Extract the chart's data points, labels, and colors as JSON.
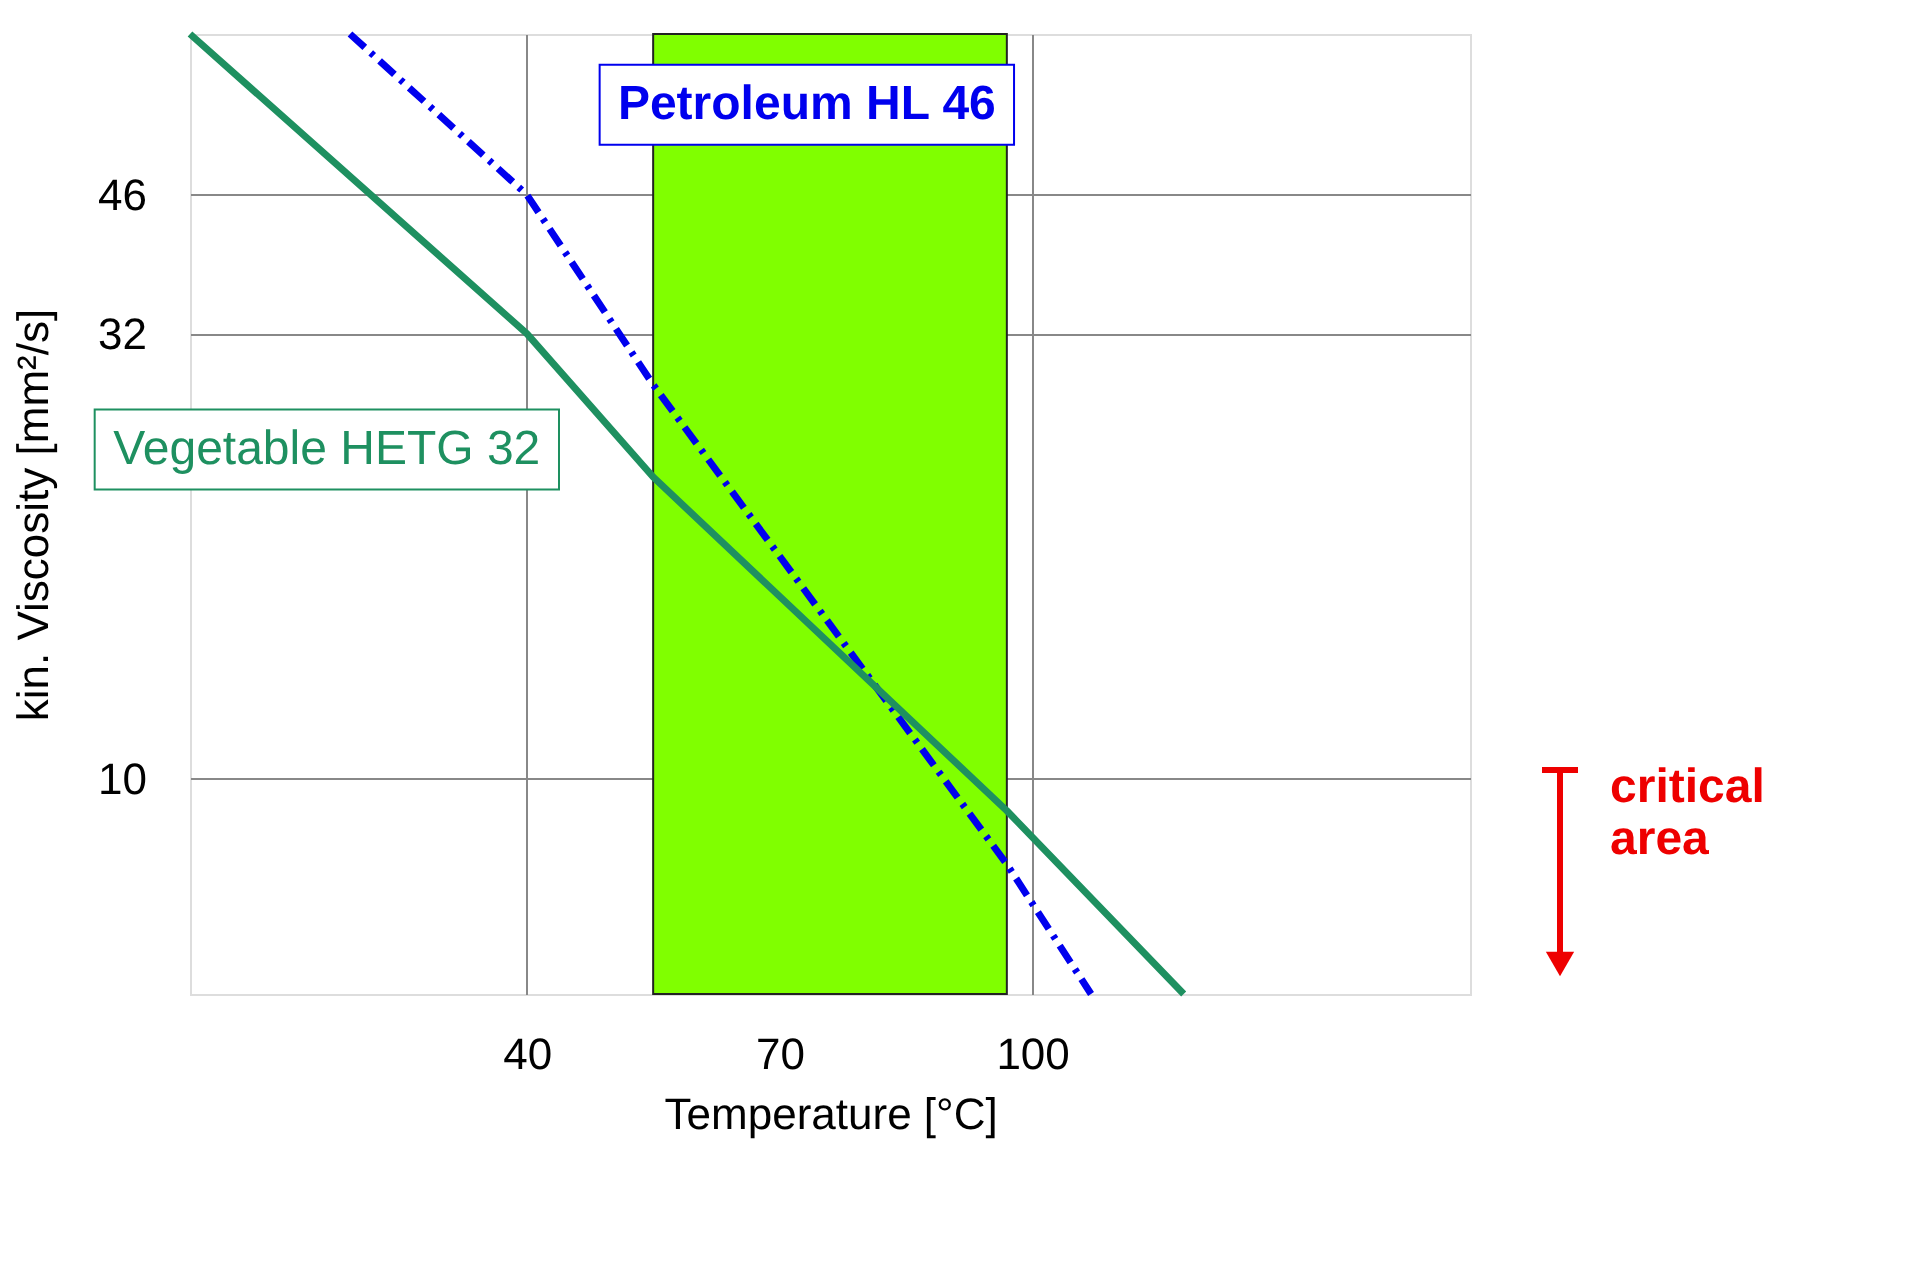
{
  "chart_data": {
    "type": "line",
    "xlabel": "Temperature [°C]",
    "ylabel": "kin. Viscosity [mm²/s]",
    "xlim": [
      0,
      152
    ],
    "xticks": [
      40,
      70,
      100
    ],
    "ylim": [
      5.7,
      70
    ],
    "yticks": [
      10,
      32,
      46
    ],
    "log": "y",
    "grid": true,
    "series": [
      {
        "name": "Petroleum HL 46",
        "color": "#0000ee",
        "line_style": "dashdot",
        "x": [
          19,
          40,
          55,
          97,
          107
        ],
        "values": [
          70,
          46,
          28,
          8,
          5.7
        ]
      },
      {
        "name": "Vegetable HETG 32",
        "color": "#1e9060",
        "line_style": "solid",
        "x": [
          0,
          40,
          55,
          97,
          118
        ],
        "values": [
          70,
          32,
          22,
          9.2,
          5.7
        ]
      }
    ],
    "bands": [
      {
        "axis": "x",
        "from": 55,
        "to": 97,
        "color": "#80ff00"
      }
    ],
    "annotations": [
      "critical area"
    ]
  }
}
